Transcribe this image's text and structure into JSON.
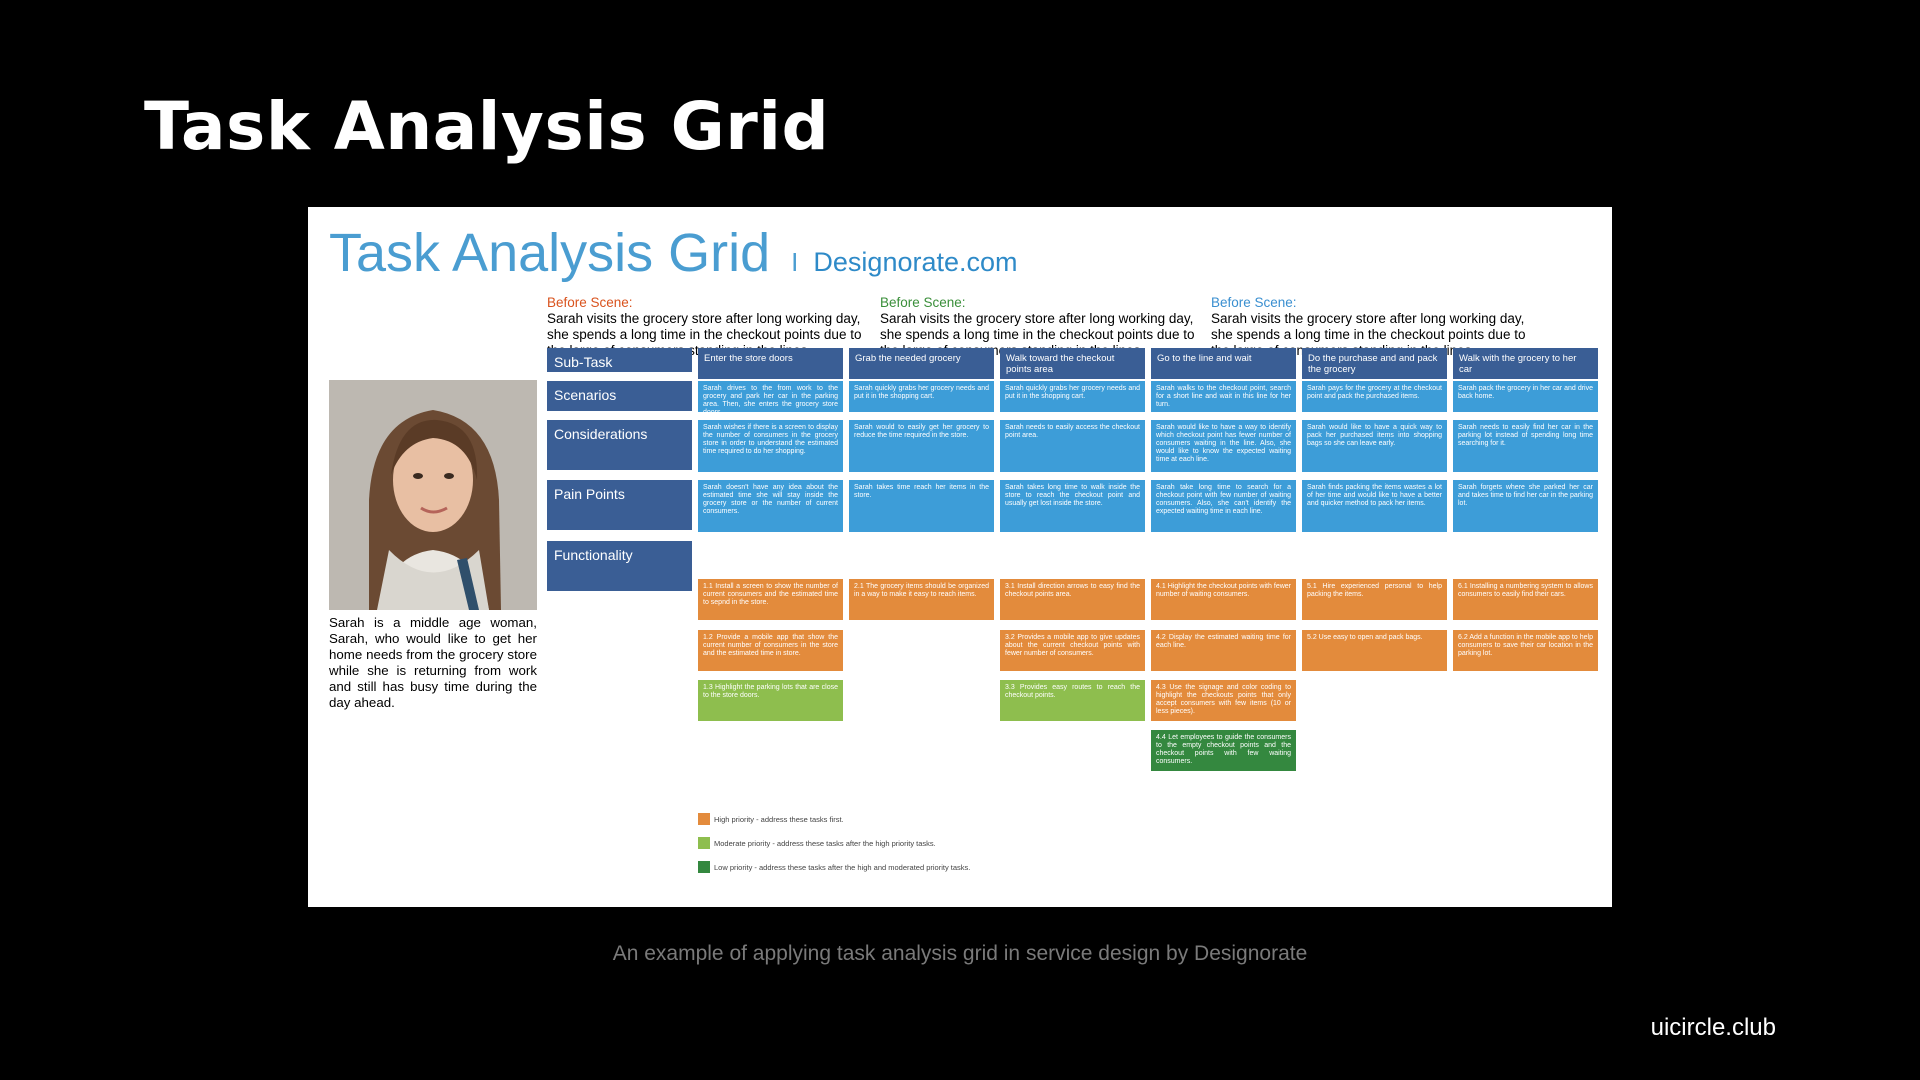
{
  "slide": {
    "title": "Task Analysis Grid",
    "caption": "An example of applying task analysis grid in service design by Designorate",
    "brand": "uicircle.club"
  },
  "grid": {
    "title": "Task Analysis Grid",
    "separator": "I",
    "site": "Designorate.com",
    "scenes": [
      {
        "label": "Before Scene:",
        "label_color": "#d9531e",
        "text": "Sarah visits the grocery store after long working day, she spends a long time in the checkout points due to the large of consumers standing in the lines."
      },
      {
        "label": "Before Scene:",
        "label_color": "#3a8f3a",
        "text": "Sarah visits the grocery store after long working day, she spends a long time in the checkout points due to the large of consumers standing in the lines."
      },
      {
        "label": "Before Scene:",
        "label_color": "#3a8fd0",
        "text": "Sarah visits the grocery store after long working day, she spends a long time in the checkout points due to the large of consumers standing in the lines."
      }
    ],
    "persona": "Sarah is a middle age woman, Sarah, who would like to get her home needs from the grocery store while she is returning from work and still has busy time during the day ahead.",
    "row_labels": [
      "Sub-Task",
      "Scenarios",
      "Considerations",
      "Pain Points",
      "Functionality"
    ],
    "columns": [
      {
        "subtask": "Enter the store doors",
        "scenario": "Sarah drives to the from work to the grocery and park her car in the parking area. Then, she enters the grocery store doors.",
        "consideration": "Sarah wishes if there is a screen to display the number of consumers in the grocery store in order to understand the estimated time required to do her shopping.",
        "pain": "Sarah doesn't have any idea about the estimated time she will stay inside the grocery store or the number of current consumers.",
        "functions": [
          {
            "text": "1.1 Install a screen to show the number of current consumers and the estimated time to sepnd in the store.",
            "priority": "high"
          },
          {
            "text": "1.2 Provide a mobile app that show the current number of consumers in the store and the estimated time in store.",
            "priority": "high"
          },
          {
            "text": "1.3 Highlight the parking lots that are close to the store doors.",
            "priority": "moderate"
          }
        ]
      },
      {
        "subtask": "Grab the needed grocery",
        "scenario": "Sarah quickly grabs her grocery needs and put it in the shopping cart.",
        "consideration": "Sarah would to easily get her grocery to reduce the time required in the store.",
        "pain": "Sarah takes time reach her items in the store.",
        "functions": [
          {
            "text": "2.1 The grocery items should be organized in a way to make it easy to reach items.",
            "priority": "high"
          }
        ]
      },
      {
        "subtask": "Walk toward the checkout points area",
        "scenario": "Sarah quickly grabs her grocery needs and put it in the shopping cart.",
        "consideration": "Sarah needs to easily access the checkout point area.",
        "pain": "Sarah takes long time to walk inside the store to reach the checkout point and usually get lost inside the store.",
        "functions": [
          {
            "text": "3.1 Install direction arrows to easy find the checkout points area.",
            "priority": "high"
          },
          {
            "text": "3.2 Provides a mobile app to give updates about the current checkout points with fewer number of consumers.",
            "priority": "high"
          },
          {
            "text": "3.3 Provides easy routes to reach the checkout points.",
            "priority": "moderate"
          }
        ]
      },
      {
        "subtask": "Go to the line and wait",
        "scenario": "Sarah walks to the checkout point, search for a short line and wait in this line for her turn.",
        "consideration": "Sarah would like to have a way to identify which checkout point has fewer number of consumers waiting in the line. Also, she would like to know the expected waiting time at each line.",
        "pain": "Sarah take long time to search for a checkout point with few number of waiting consumers. Also, she can't identify the expected waiting time in each line.",
        "functions": [
          {
            "text": "4.1 Highlight the checkout points with fewer number of waiting consumers.",
            "priority": "high"
          },
          {
            "text": "4.2 Display the estimated waiting time for each line.",
            "priority": "high"
          },
          {
            "text": "4.3 Use the signage and color coding to highlight the checkouts points that only accept consumers with few items (10 or less pieces).",
            "priority": "high"
          },
          {
            "text": "4.4 Let employees to guide the consumers to the empty checkout points and the checkout points with few waiting consumers.",
            "priority": "low"
          }
        ]
      },
      {
        "subtask": "Do the purchase and and pack the grocery",
        "scenario": "Sarah pays for the grocery at the checkout point and pack the purchased items.",
        "consideration": "Sarah would like to have a quick way to pack her purchased items into shopping bags so she can leave early.",
        "pain": "Sarah finds packing the items wastes a lot of her time and would like to have a better and quicker method to pack her items.",
        "functions": [
          {
            "text": "5.1 Hire experienced personal to help packing the items.",
            "priority": "high"
          },
          {
            "text": "5.2 Use easy to open and pack bags.",
            "priority": "high"
          }
        ]
      },
      {
        "subtask": "Walk with the grocery to her car",
        "scenario": "Sarah pack the grocery in her car and drive back home.",
        "consideration": "Sarah needs to easily find her car in the parking lot instead of spending long time searching for it.",
        "pain": "Sarah forgets where she parked her car and takes time to find her car in the parking lot.",
        "functions": [
          {
            "text": "6.1 Installing a numbering system to allows consumers to easily find their cars.",
            "priority": "high"
          },
          {
            "text": "6.2 Add a function in the mobile app to help consumers to save their car location in the parking lot.",
            "priority": "high"
          }
        ]
      }
    ],
    "legend": [
      {
        "priority": "high",
        "color": "#e38b3c",
        "text": "High priority - address these tasks first."
      },
      {
        "priority": "moderate",
        "color": "#8ebe4e",
        "text": "Moderate priority - address these tasks after the high priority tasks."
      },
      {
        "priority": "low",
        "color": "#34883f",
        "text": "Low priority - address these tasks after the high  and moderated priority tasks."
      }
    ],
    "colors": {
      "subtask": "#3a5e95",
      "blue": "#3d9dd8",
      "high": "#e38b3c",
      "moderate": "#8ebe4e",
      "low": "#34883f"
    }
  }
}
